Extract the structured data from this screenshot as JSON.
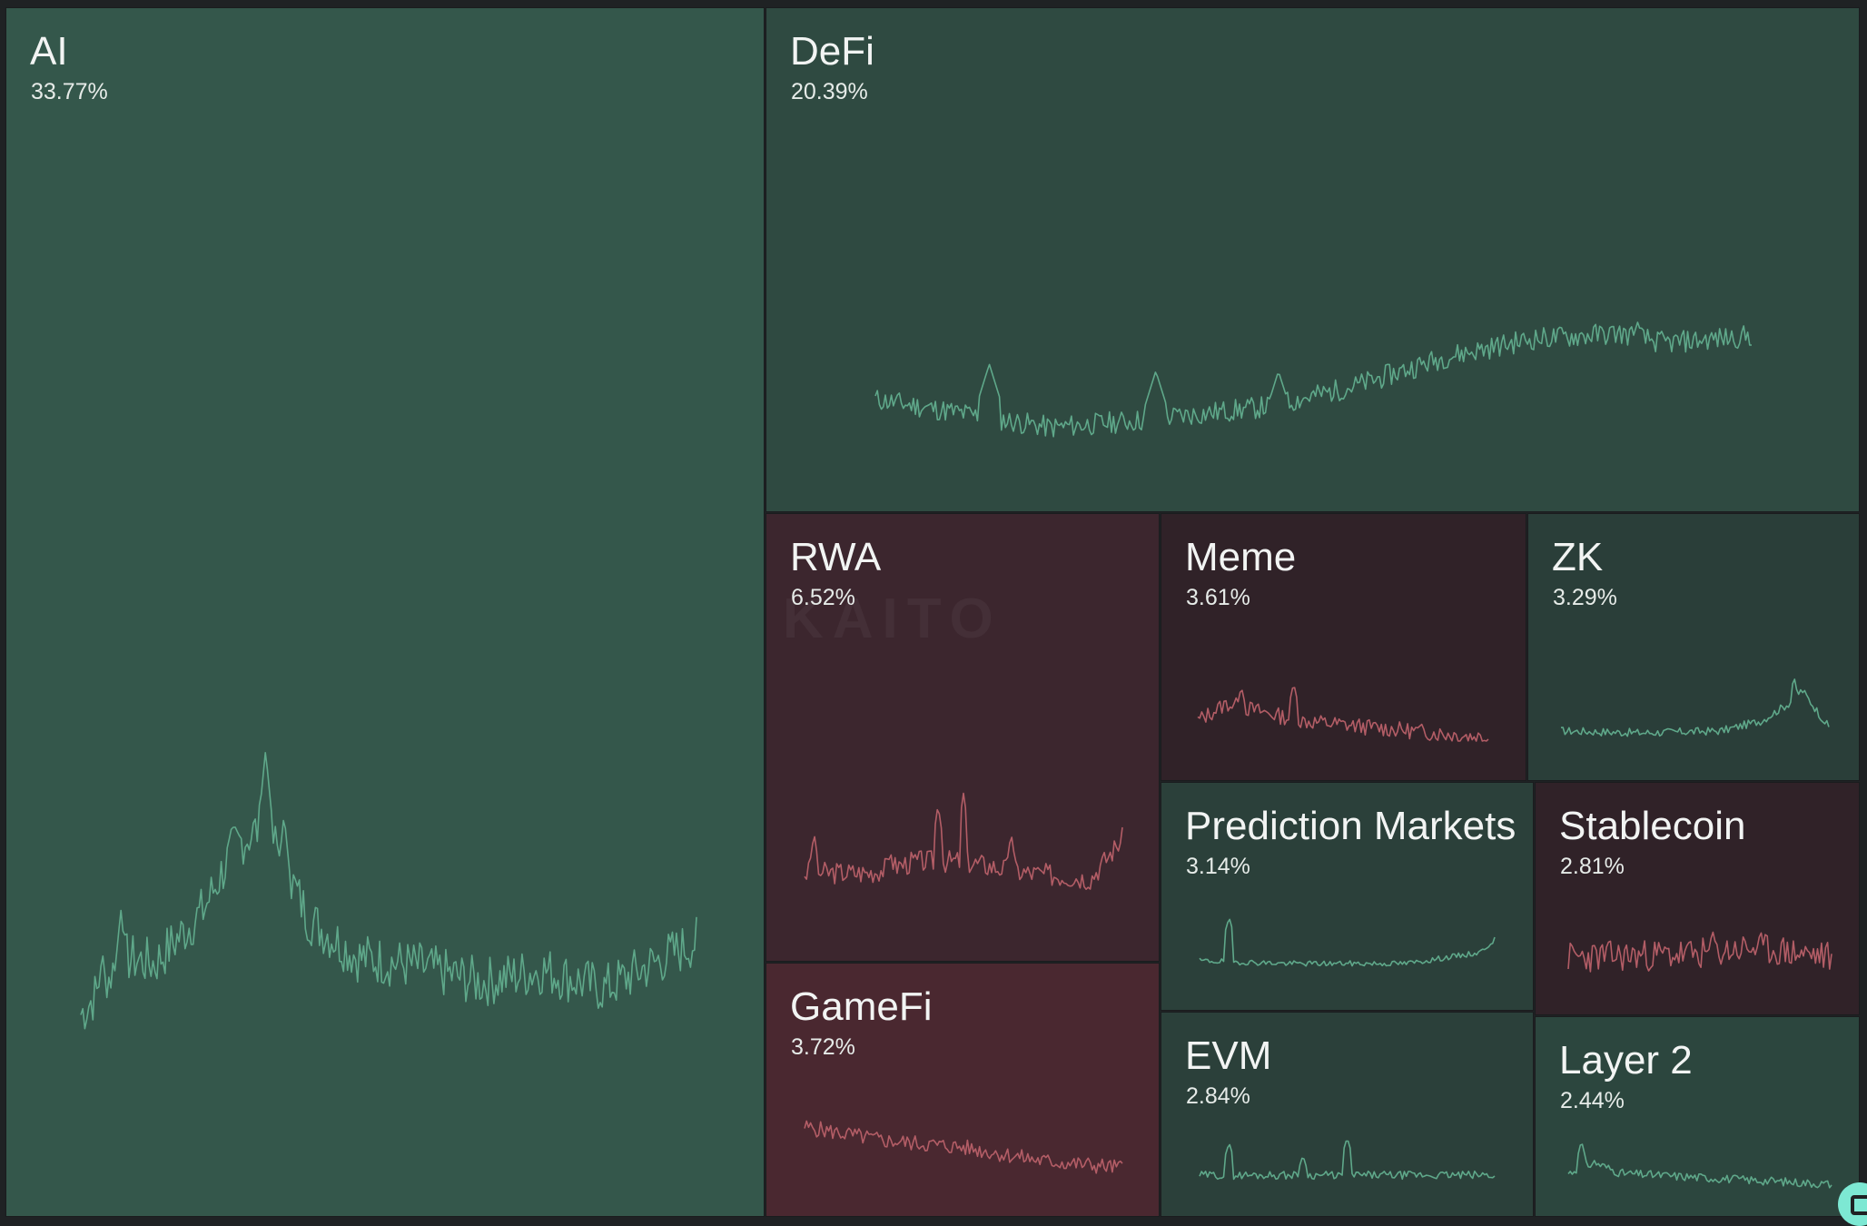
{
  "chart_data": {
    "type": "treemap",
    "title": "",
    "watermark": "KAITO",
    "colors": {
      "positive_dark": "#2e4b41",
      "positive_mid": "#34574b",
      "positive_deep": "#2a3e39",
      "negative": "#4a2830",
      "negative_mid": "#3c262e",
      "negative_deep": "#302228",
      "line_positive": "#5fa88a",
      "line_negative": "#b35d66"
    },
    "tiles": [
      {
        "id": "ai",
        "name": "AI",
        "share": "33.77%",
        "value": 33.77,
        "trend": "up",
        "fill": "#34574b",
        "line": "#5fa88a",
        "profile": "ai"
      },
      {
        "id": "defi",
        "name": "DeFi",
        "share": "20.39%",
        "value": 20.39,
        "trend": "up",
        "fill": "#2f4a41",
        "line": "#5fa88a",
        "profile": "defi"
      },
      {
        "id": "rwa",
        "name": "RWA",
        "share": "6.52%",
        "value": 6.52,
        "trend": "down",
        "fill": "#3c262e",
        "line": "#b35d66",
        "profile": "rwa"
      },
      {
        "id": "gamefi",
        "name": "GameFi",
        "share": "3.72%",
        "value": 3.72,
        "trend": "down",
        "fill": "#4a2830",
        "line": "#b35d66",
        "profile": "gamefi"
      },
      {
        "id": "meme",
        "name": "Meme",
        "share": "3.61%",
        "value": 3.61,
        "trend": "down",
        "fill": "#302228",
        "line": "#b35d66",
        "profile": "meme"
      },
      {
        "id": "zk",
        "name": "ZK",
        "share": "3.29%",
        "value": 3.29,
        "trend": "up",
        "fill": "#2a3e39",
        "line": "#5fa88a",
        "profile": "zk"
      },
      {
        "id": "prediction",
        "name": "Prediction Markets",
        "share": "3.14%",
        "value": 3.14,
        "trend": "up",
        "fill": "#2b403a",
        "line": "#5fa88a",
        "profile": "prediction"
      },
      {
        "id": "stablecoin",
        "name": "Stablecoin",
        "share": "2.81%",
        "value": 2.81,
        "trend": "down",
        "fill": "#302228",
        "line": "#b35d66",
        "profile": "stablecoin"
      },
      {
        "id": "evm",
        "name": "EVM",
        "share": "2.84%",
        "value": 2.84,
        "trend": "up",
        "fill": "#2b403a",
        "line": "#5fa88a",
        "profile": "evm"
      },
      {
        "id": "layer2",
        "name": "Layer 2",
        "share": "2.44%",
        "value": 2.44,
        "trend": "up",
        "fill": "#2c463e",
        "line": "#5fa88a",
        "profile": "layer2"
      }
    ]
  }
}
